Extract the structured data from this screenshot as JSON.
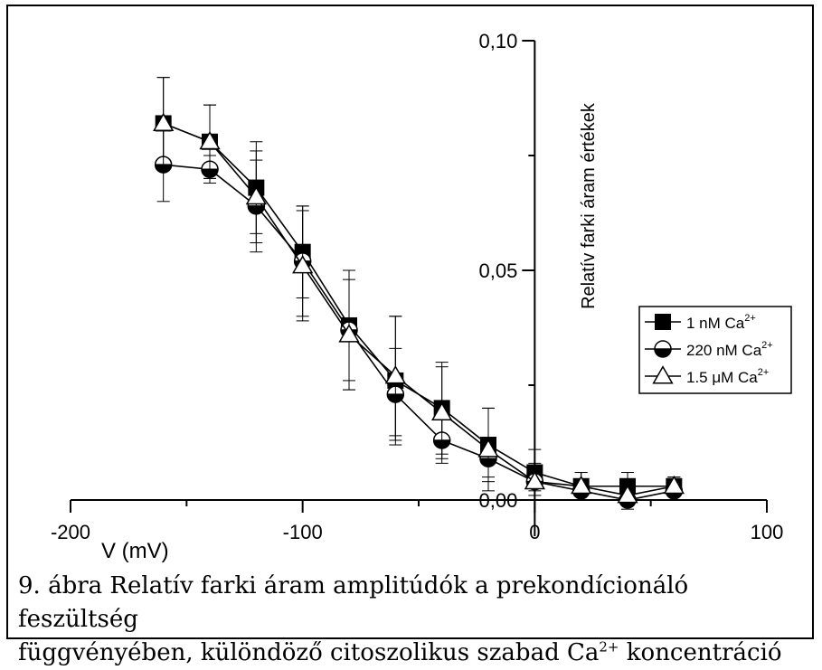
{
  "chart_data": {
    "type": "line",
    "title": "",
    "xlabel": "V (mV)",
    "ylabel": "Relatív farki áram értékek",
    "xlim": [
      -200,
      100
    ],
    "ylim": [
      0.0,
      0.1
    ],
    "x_ticks": [
      -200,
      -100,
      0,
      100
    ],
    "x_tick_labels": [
      "-200",
      "-100",
      "0",
      "100"
    ],
    "y_ticks": [
      0.0,
      0.05,
      0.1
    ],
    "y_tick_labels": [
      "0,00",
      "0,05",
      "0,10"
    ],
    "grid": false,
    "legend_position": "right",
    "x": [
      -160,
      -140,
      -120,
      -100,
      -80,
      -60,
      -40,
      -20,
      0,
      20,
      40,
      60
    ],
    "series": [
      {
        "name": "1 nM Ca",
        "name_sup": "2+",
        "marker": "square",
        "values": [
          0.082,
          0.078,
          0.068,
          0.054,
          0.038,
          0.026,
          0.02,
          0.012,
          0.006,
          0.003,
          0.003,
          0.003
        ],
        "errors": [
          0.01,
          0.008,
          0.01,
          0.01,
          0.012,
          0.014,
          0.01,
          0.008,
          0.005,
          0.003,
          0.003,
          0.002
        ]
      },
      {
        "name": "220 nM Ca",
        "name_sup": "2+",
        "marker": "half-circle",
        "values": [
          0.073,
          0.072,
          0.064,
          0.052,
          0.037,
          0.023,
          0.013,
          0.009,
          0.004,
          0.002,
          0.0,
          0.002
        ],
        "errors": [
          0.008,
          0.003,
          0.01,
          0.012,
          0.013,
          0.01,
          0.005,
          0.004,
          0.002,
          0.002,
          0.002,
          0.002
        ]
      },
      {
        "name": "1.5 μM Ca",
        "name_sup": "2+",
        "marker": "triangle",
        "values": [
          0.082,
          0.078,
          0.066,
          0.051,
          0.036,
          0.027,
          0.019,
          0.011,
          0.004,
          0.003,
          0.001,
          0.003
        ],
        "errors": [
          0.01,
          0.008,
          0.01,
          0.012,
          0.012,
          0.013,
          0.01,
          0.009,
          0.004,
          0.003,
          0.002,
          0.002
        ]
      }
    ]
  },
  "caption": {
    "line1": "9. ábra  Relatív farki áram amplitúdók a prekondícionáló feszültség",
    "line2_before": "függvényében, különdöző citoszolikus szabad Ca",
    "line2_sup": "2+",
    "line2_after": " koncentráció"
  }
}
